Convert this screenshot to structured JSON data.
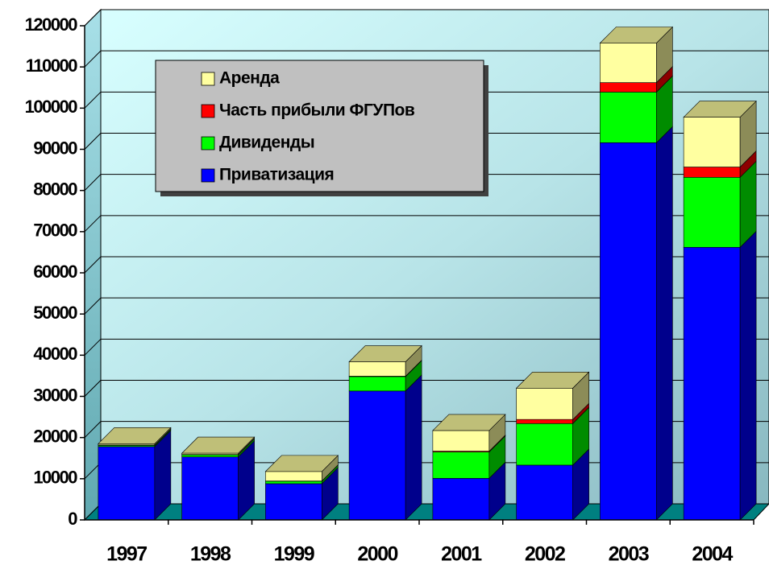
{
  "chart_data": {
    "type": "bar3d_stacked",
    "categories": [
      "1997",
      "1998",
      "1999",
      "2000",
      "2001",
      "2002",
      "2003",
      "2004"
    ],
    "series": [
      {
        "name": "Приватизация",
        "color": "#0000ff",
        "values": [
          17800,
          15300,
          8800,
          31300,
          10100,
          13300,
          91600,
          66200
        ]
      },
      {
        "name": "Дивиденды",
        "color": "#00ff00",
        "values": [
          300,
          500,
          600,
          3500,
          6400,
          10100,
          12300,
          17000
        ]
      },
      {
        "name": "Часть прибыли ФГУПов",
        "color": "#ff0000",
        "values": [
          100,
          100,
          50,
          100,
          200,
          1000,
          2300,
          2500
        ]
      },
      {
        "name": "Аренда",
        "color": "#ffffa0",
        "values": [
          300,
          300,
          2300,
          3500,
          5000,
          7600,
          9600,
          12100
        ]
      }
    ],
    "ylim": [
      0,
      120000
    ],
    "yticks": [
      0,
      10000,
      20000,
      30000,
      40000,
      50000,
      60000,
      70000,
      80000,
      90000,
      100000,
      110000,
      120000
    ],
    "grid": true,
    "legend": "upper left"
  }
}
